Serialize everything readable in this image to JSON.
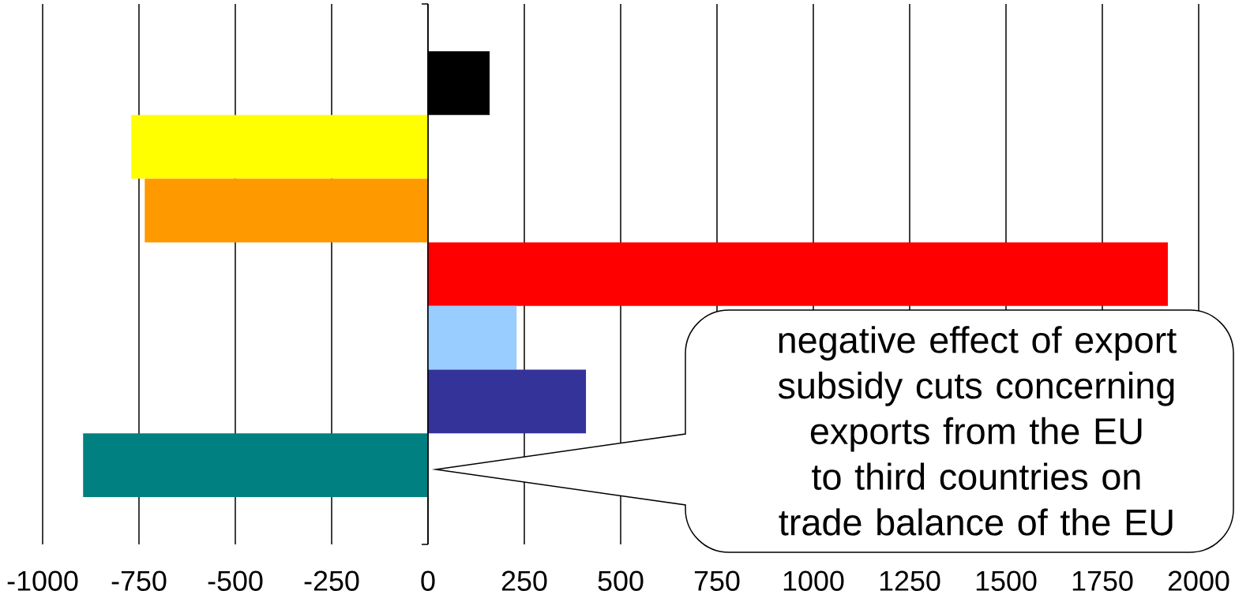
{
  "chart_data": {
    "type": "bar",
    "orientation": "horizontal",
    "categories": [
      null
    ],
    "series": [
      {
        "color": "#000000",
        "values": [
          160
        ]
      },
      {
        "color": "#ffff00",
        "values": [
          -770
        ]
      },
      {
        "color": "#ff9900",
        "values": [
          -735
        ]
      },
      {
        "color": "#ff0000",
        "values": [
          1920
        ]
      },
      {
        "color": "#99ccff",
        "values": [
          230
        ]
      },
      {
        "color": "#333399",
        "values": [
          410
        ]
      },
      {
        "color": "#008080",
        "values": [
          -895
        ]
      }
    ],
    "xlim": [
      -1000,
      2000
    ],
    "xticks": [
      -1000,
      -750,
      -500,
      -250,
      0,
      250,
      500,
      750,
      1000,
      1250,
      1500,
      1750,
      2000
    ],
    "grid": "x",
    "annotations": [
      "negative effect of export subsidy cuts concerning exports from the EU to third countries on trade balance of the EU"
    ]
  }
}
